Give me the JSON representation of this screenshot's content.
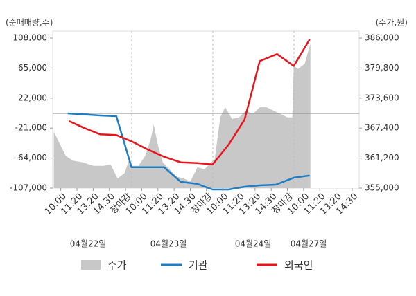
{
  "chart_data": {
    "type": "dual-axis-line-area",
    "y_label": "(순매매량,주)",
    "y2_label": "(주가,원)",
    "ylim": [
      -107000,
      108000
    ],
    "yticks": [
      {
        "value": 108000,
        "label": "108,000"
      },
      {
        "value": 65000,
        "label": "65,000"
      },
      {
        "value": 22000,
        "label": "22,000"
      },
      {
        "value": -21000,
        "label": "-21,000"
      },
      {
        "value": -64000,
        "label": "-64,000"
      },
      {
        "value": -107000,
        "label": "-107,000"
      }
    ],
    "y2lim": [
      355000,
      386000
    ],
    "y2ticks": [
      {
        "value": 386000,
        "label": "386,000"
      },
      {
        "value": 379800,
        "label": "379,800"
      },
      {
        "value": 373600,
        "label": "373,600"
      },
      {
        "value": 367400,
        "label": "367,400"
      },
      {
        "value": 361200,
        "label": "361,200"
      },
      {
        "value": 355000,
        "label": "355,000"
      }
    ],
    "xlim": [
      -0.5,
      18.43
    ],
    "xticks": [
      {
        "value": 0,
        "label": "10:00"
      },
      {
        "value": 1,
        "label": "11:20"
      },
      {
        "value": 2,
        "label": "13:20"
      },
      {
        "value": 3,
        "label": "14:30"
      },
      {
        "value": 4,
        "label": "장마감",
        "color": "#e8141c"
      },
      {
        "value": 5,
        "label": "10:00"
      },
      {
        "value": 6,
        "label": "11:20"
      },
      {
        "value": 7,
        "label": "13:20"
      },
      {
        "value": 8,
        "label": "14:30"
      },
      {
        "value": 9,
        "label": "장마감",
        "color": "#e8141c"
      },
      {
        "value": 10,
        "label": "10:00"
      },
      {
        "value": 11,
        "label": "11:20"
      },
      {
        "value": 12,
        "label": "13:20"
      },
      {
        "value": 13,
        "label": "14:30"
      },
      {
        "value": 14,
        "label": "장마감",
        "color": "#e8141c"
      },
      {
        "value": 15,
        "label": "10:00"
      },
      {
        "value": 16,
        "label": "11:20"
      },
      {
        "value": 17,
        "label": "13:20"
      },
      {
        "value": 18,
        "label": "14:30"
      }
    ],
    "dates": [
      "04월22일",
      "04월23일",
      "04월24일",
      "04월27일"
    ],
    "series": [
      {
        "name": "주가",
        "type": "area",
        "axis": "y2",
        "color": "#c8c8c8",
        "x": [
          -0.43,
          -0.13,
          0.3,
          0.73,
          1.37,
          2.01,
          2.66,
          3.08,
          3.51,
          3.94,
          4.2,
          4.37,
          4.8,
          5.22,
          5.57,
          5.74,
          6.0,
          6.3,
          6.72,
          7.15,
          7.58,
          8.01,
          8.44,
          8.87,
          9.29,
          9.51,
          9.85,
          10.15,
          10.58,
          11.01,
          11.44,
          11.86,
          12.29,
          12.72,
          13.15,
          13.58,
          14.0,
          14.3,
          14.39,
          14.65,
          15.07,
          15.42
        ],
        "values": [
          366700,
          364600,
          361700,
          360700,
          360300,
          359600,
          359600,
          359900,
          357000,
          358100,
          360700,
          359600,
          359600,
          361700,
          365300,
          368100,
          363900,
          360300,
          358900,
          357400,
          357000,
          356400,
          359300,
          358900,
          360300,
          361000,
          369600,
          371700,
          369300,
          369600,
          371000,
          370300,
          371700,
          371700,
          371000,
          370300,
          369600,
          369600,
          380300,
          379600,
          380700,
          384900
        ]
      },
      {
        "name": "기관",
        "type": "line",
        "color": "#1f7dc4",
        "x": [
          0.43,
          2.44,
          3.43,
          4.37,
          6.38,
          7.41,
          8.44,
          9.38,
          10.36,
          11.35,
          12.29,
          13.28,
          14.39,
          15.37
        ],
        "values": [
          0,
          -3000,
          -4000,
          -77000,
          -77000,
          -98000,
          -101000,
          -109000,
          -109000,
          -105000,
          -103000,
          -102000,
          -92000,
          -89000
        ]
      },
      {
        "name": "외국인",
        "type": "line",
        "color": "#e8141c",
        "x": [
          0.51,
          1.46,
          2.44,
          3.43,
          4.37,
          5.4,
          6.38,
          7.41,
          8.44,
          9.38,
          10.36,
          11.35,
          12.29,
          13.36,
          14.39,
          15.37
        ],
        "values": [
          -11000,
          -21000,
          -30000,
          -31000,
          -40000,
          -52000,
          -62000,
          -70000,
          -71000,
          -73000,
          -45000,
          -9000,
          75000,
          85000,
          68000,
          106000
        ]
      }
    ]
  }
}
